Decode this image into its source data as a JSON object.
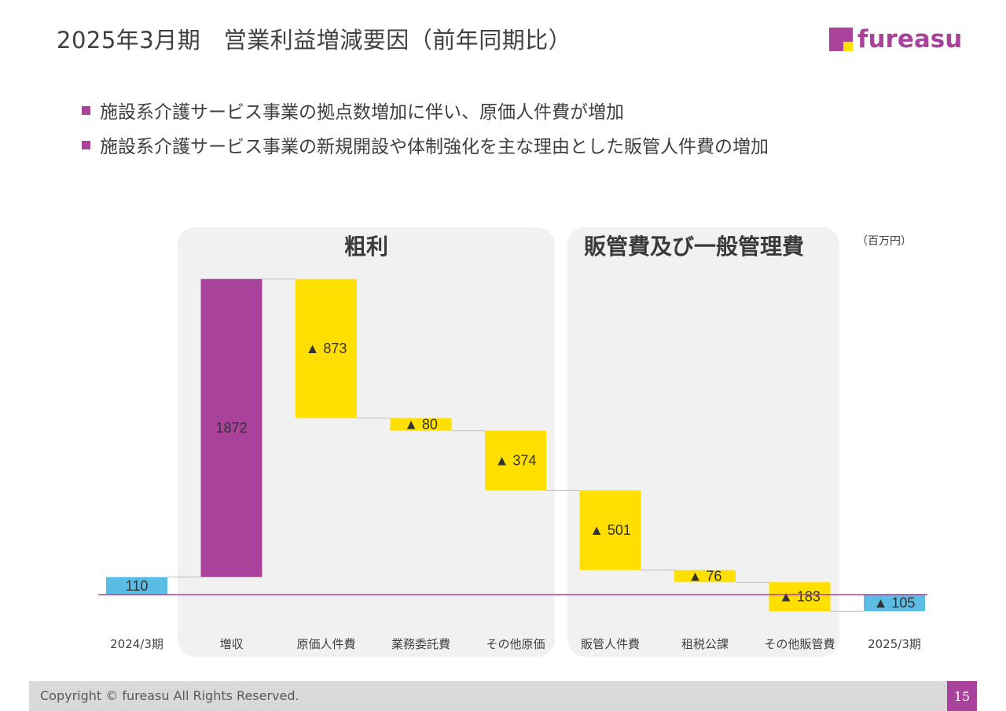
{
  "title": "2025年3月期　営業利益増減要因（前年同期比）",
  "logo": {
    "text": "fureasu",
    "colors": {
      "primary": "#a9429a",
      "accent": "#ffdf00"
    }
  },
  "bullets": [
    "施設系介護サービス事業の拠点数増加に伴い、原価人件費が増加",
    "施設系介護サービス事業の新規開設や体制強化を主な理由とした販管人件費の増加"
  ],
  "panels": {
    "gross": "粗利",
    "sga": "販管費及び一般管理費"
  },
  "unit_label": "（百万円）",
  "footer": {
    "copyright": "Copyright © fureasu All Rights Reserved.",
    "page": "15"
  },
  "chart_data": {
    "type": "bar",
    "subtype": "waterfall",
    "categories": [
      "2024/3期",
      "増収",
      "原価人件費",
      "業務委託費",
      "その他原価",
      "販管人件費",
      "租税公課",
      "その他販管費",
      "2025/3期"
    ],
    "values": [
      110,
      1872,
      -873,
      -80,
      -374,
      -501,
      -76,
      -183,
      -105
    ],
    "labels": [
      "110",
      "1872",
      "▲ 873",
      "▲ 80",
      "▲ 374",
      "▲ 501",
      "▲ 76",
      "▲ 183",
      "▲ 105"
    ],
    "kinds": [
      "total",
      "increase",
      "decrease",
      "decrease",
      "decrease",
      "decrease",
      "decrease",
      "decrease",
      "total"
    ],
    "colors": {
      "total": "#5bbde4",
      "increase": "#a9429a",
      "decrease": "#ffdf00",
      "zero_line": "#a9429a",
      "connector": "#bfbfbf"
    },
    "grid": false,
    "legend": "none"
  }
}
